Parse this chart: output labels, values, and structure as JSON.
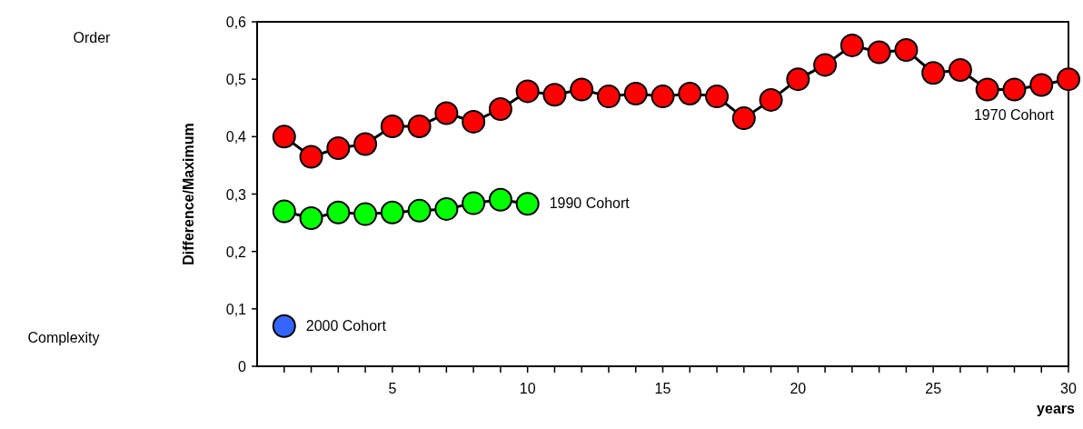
{
  "chart_data": {
    "type": "line",
    "xlabel": "years",
    "ylabel": "Difference/Maximum",
    "annotations": [
      "Order",
      "Complexity"
    ],
    "xlim": [
      0,
      30
    ],
    "ylim": [
      0,
      0.6
    ],
    "xticks": [
      {
        "value": 1,
        "label": null
      },
      {
        "value": 2,
        "label": null
      },
      {
        "value": 3,
        "label": null
      },
      {
        "value": 4,
        "label": null
      },
      5,
      {
        "value": 6,
        "label": null
      },
      {
        "value": 7,
        "label": null
      },
      {
        "value": 8,
        "label": null
      },
      {
        "value": 9,
        "label": null
      },
      10,
      {
        "value": 11,
        "label": null
      },
      {
        "value": 12,
        "label": null
      },
      {
        "value": 13,
        "label": null
      },
      {
        "value": 14,
        "label": null
      },
      15,
      {
        "value": 16,
        "label": null
      },
      {
        "value": 17,
        "label": null
      },
      {
        "value": 18,
        "label": null
      },
      {
        "value": 19,
        "label": null
      },
      20,
      {
        "value": 21,
        "label": null
      },
      {
        "value": 22,
        "label": null
      },
      {
        "value": 23,
        "label": null
      },
      {
        "value": 24,
        "label": null
      },
      25,
      {
        "value": 26,
        "label": null
      },
      {
        "value": 27,
        "label": null
      },
      {
        "value": 28,
        "label": null
      },
      {
        "value": 29,
        "label": null
      },
      30
    ],
    "yticks": [
      0,
      {
        "value": 0.1,
        "label": "0,1"
      },
      {
        "value": 0.2,
        "label": "0,2"
      },
      {
        "value": 0.3,
        "label": "0,3"
      },
      {
        "value": 0.4,
        "label": "0,4"
      },
      {
        "value": 0.5,
        "label": "0,5"
      },
      {
        "value": 0.6,
        "label": "0,6"
      }
    ],
    "grid": false,
    "marker": "circle",
    "line_style": "solid",
    "series": [
      {
        "name": "1970 Cohort",
        "color": "#ff0000",
        "x": [
          1,
          2,
          3,
          4,
          5,
          6,
          7,
          8,
          9,
          10,
          11,
          12,
          13,
          14,
          15,
          16,
          17,
          18,
          19,
          20,
          21,
          22,
          23,
          24,
          25,
          26,
          27,
          28,
          29,
          30
        ],
        "values": [
          0.4,
          0.365,
          0.38,
          0.387,
          0.418,
          0.418,
          0.441,
          0.426,
          0.448,
          0.479,
          0.473,
          0.482,
          0.47,
          0.475,
          0.47,
          0.475,
          0.47,
          0.432,
          0.464,
          0.5,
          0.525,
          0.559,
          0.547,
          0.551,
          0.511,
          0.516,
          0.482,
          0.482,
          0.49,
          0.5
        ]
      },
      {
        "name": "1990 Cohort",
        "color": "#00ff00",
        "x": [
          1,
          2,
          3,
          4,
          5,
          6,
          7,
          8,
          9,
          10
        ],
        "values": [
          0.27,
          0.258,
          0.268,
          0.265,
          0.268,
          0.271,
          0.274,
          0.284,
          0.29,
          0.283
        ]
      },
      {
        "name": "2000 Cohort",
        "color": "#3366ff",
        "x": [
          1
        ],
        "values": [
          0.07
        ]
      }
    ]
  }
}
